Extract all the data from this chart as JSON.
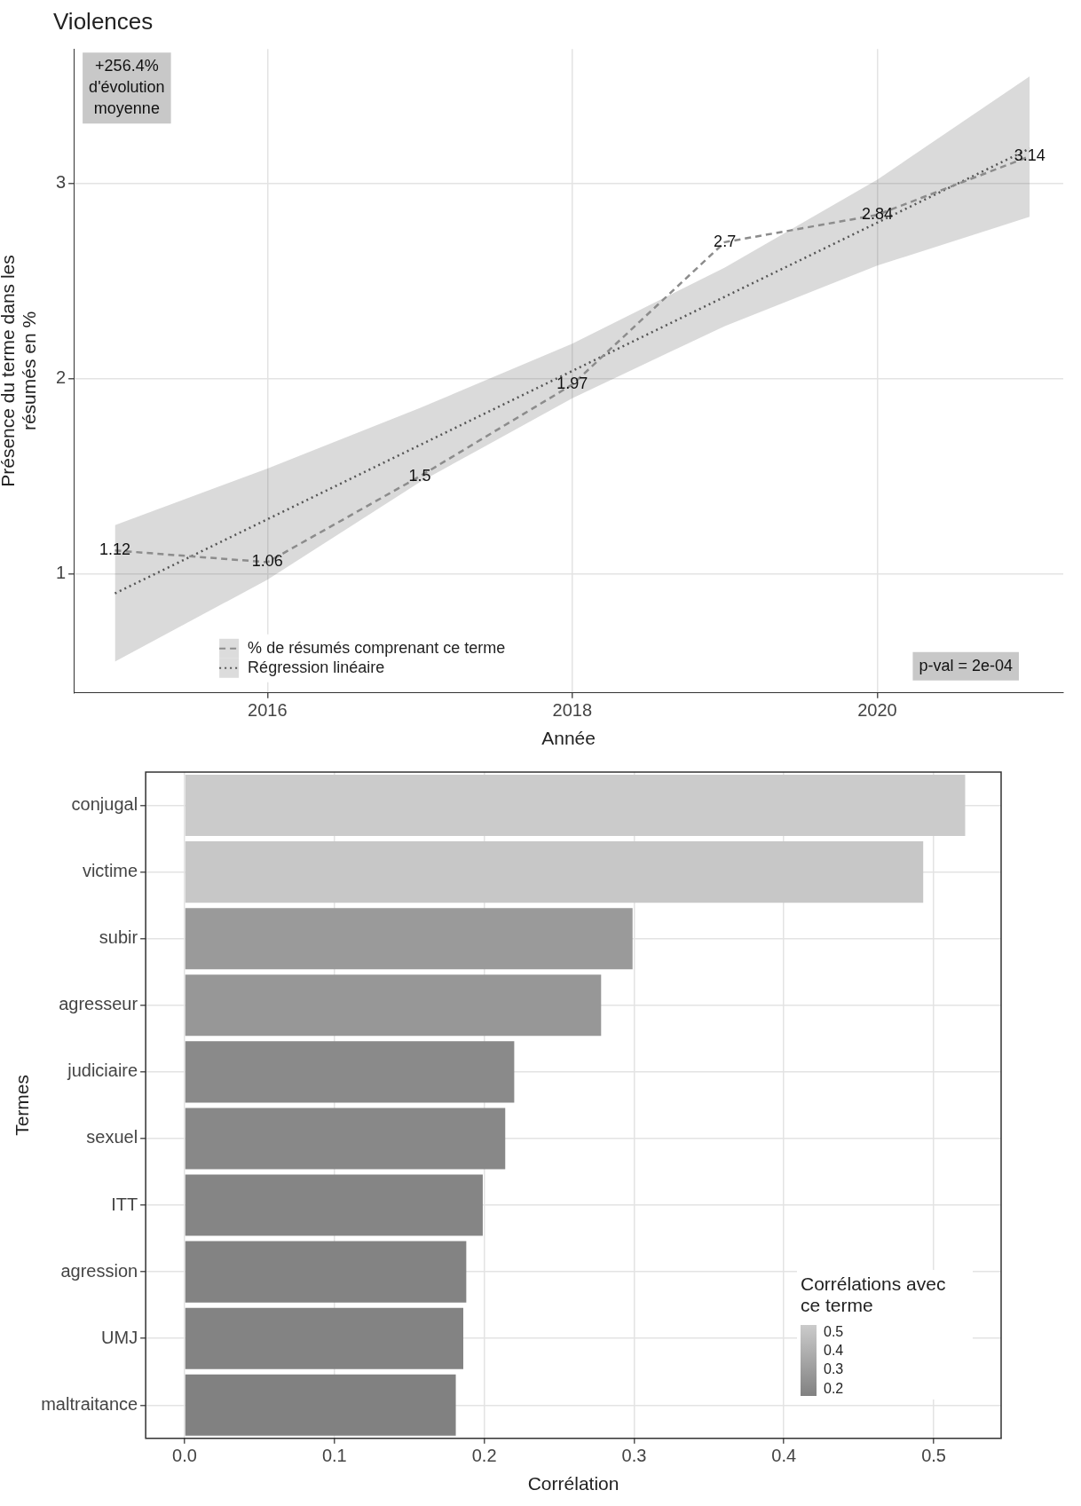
{
  "chart_data": [
    {
      "type": "line",
      "title": "Violences",
      "xlabel": "Année",
      "ylabel": "Présence du terme dans les résumés en %",
      "x": [
        2015,
        2016,
        2017,
        2018,
        2019,
        2020,
        2021
      ],
      "series": [
        {
          "name": "% de résumés comprenant ce terme",
          "color": "#8c8c8c",
          "line_style": "dashed",
          "values": [
            1.12,
            1.06,
            1.5,
            1.97,
            2.7,
            2.84,
            3.14
          ],
          "value_labels": [
            "1.12",
            "1.06",
            "1.5",
            "1.97",
            "2.7",
            "2.84",
            "3.14"
          ]
        },
        {
          "name": "Régression linéaire",
          "color": "#555555",
          "line_style": "dotted",
          "values": [
            0.9,
            1.28,
            1.66,
            2.04,
            2.42,
            2.8,
            3.18
          ],
          "lower": [
            0.55,
            0.97,
            1.47,
            1.9,
            2.27,
            2.58,
            2.83
          ],
          "upper": [
            1.25,
            1.54,
            1.85,
            2.18,
            2.57,
            3.02,
            3.55
          ]
        }
      ],
      "xlim": [
        2014.73,
        2021.22
      ],
      "xticks": [
        2016,
        2018,
        2020
      ],
      "ylim": [
        0.39,
        3.69
      ],
      "yticks": [
        1,
        2,
        3
      ],
      "grid": true,
      "legend": "bottom left",
      "marker": "none",
      "annotations": [
        "+256.4% d'évolution moyenne",
        "p-val = 2e-04"
      ]
    },
    {
      "type": "bar",
      "orientation": "horizontal",
      "xlabel": "Corrélation",
      "ylabel": "Termes",
      "categories": [
        "conjugal",
        "victime",
        "subir",
        "agresseur",
        "judiciaire",
        "sexuel",
        "ITT",
        "agression",
        "UMJ",
        "maltraitance"
      ],
      "values": [
        0.521,
        0.493,
        0.299,
        0.278,
        0.22,
        0.214,
        0.199,
        0.188,
        0.186,
        0.181
      ],
      "colors": [
        "#cbcbcb",
        "#c7c7c7",
        "#9a9a9a",
        "#979797",
        "#8a8a8a",
        "#888888",
        "#858585",
        "#838383",
        "#838383",
        "#818181"
      ],
      "xlim": [
        -0.026,
        0.545
      ],
      "xticks": [
        {
          "value": 0,
          "label": "0.0"
        },
        0.1,
        0.2,
        0.3,
        0.4,
        0.5
      ],
      "grid": true,
      "clabel": "Corrélations avec ce terme",
      "annotations": [
        "0.5",
        "0.4",
        "0.3",
        "0.2"
      ]
    }
  ]
}
